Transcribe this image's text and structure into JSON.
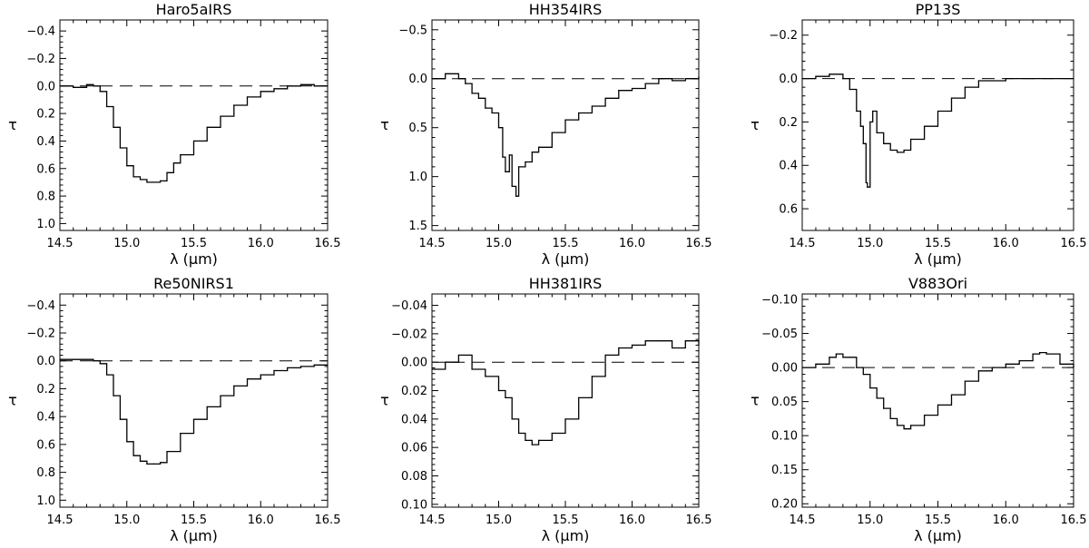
{
  "chart_data": [
    {
      "type": "line",
      "title": "Haro5aIRS",
      "xlabel": "λ (μm)",
      "ylabel": "τ",
      "xlim": [
        14.5,
        16.5
      ],
      "ylim": [
        1.05,
        -0.48
      ],
      "y_inverted": true,
      "xticks": [
        14.5,
        15.0,
        15.5,
        16.0,
        16.5
      ],
      "xtick_labels": [
        "14.5",
        "15.0",
        "15.5",
        "16.0",
        "16.5"
      ],
      "yticks": [
        -0.4,
        -0.2,
        0.0,
        0.2,
        0.4,
        0.6,
        0.8,
        1.0
      ],
      "ytick_labels": [
        "−0.4",
        "−0.2",
        "0.0",
        "0.2",
        "0.4",
        "0.6",
        "0.8",
        "1.0"
      ],
      "reference_line": 0.0,
      "grid": false,
      "x": [
        14.5,
        14.6,
        14.7,
        14.75,
        14.8,
        14.85,
        14.9,
        14.95,
        15.0,
        15.05,
        15.1,
        15.15,
        15.2,
        15.25,
        15.3,
        15.35,
        15.4,
        15.5,
        15.6,
        15.7,
        15.8,
        15.9,
        16.0,
        16.1,
        16.2,
        16.3,
        16.4,
        16.5
      ],
      "y": [
        0.0,
        0.01,
        -0.01,
        0.0,
        0.04,
        0.15,
        0.3,
        0.45,
        0.58,
        0.66,
        0.68,
        0.7,
        0.7,
        0.69,
        0.63,
        0.56,
        0.5,
        0.4,
        0.3,
        0.22,
        0.14,
        0.08,
        0.04,
        0.02,
        0.0,
        -0.01,
        0.0,
        0.0
      ]
    },
    {
      "type": "line",
      "title": "HH354IRS",
      "xlabel": "λ (μm)",
      "ylabel": "τ",
      "xlim": [
        14.5,
        16.5
      ],
      "ylim": [
        1.55,
        -0.6
      ],
      "y_inverted": true,
      "xticks": [
        14.5,
        15.0,
        15.5,
        16.0,
        16.5
      ],
      "xtick_labels": [
        "14.5",
        "15.0",
        "15.5",
        "16.0",
        "16.5"
      ],
      "yticks": [
        -0.5,
        0.0,
        0.5,
        1.0,
        1.5
      ],
      "ytick_labels": [
        "−0.5",
        "0.0",
        "0.5",
        "1.0",
        "1.5"
      ],
      "reference_line": 0.0,
      "grid": false,
      "x": [
        14.5,
        14.6,
        14.7,
        14.75,
        14.8,
        14.85,
        14.9,
        14.95,
        15.0,
        15.03,
        15.05,
        15.08,
        15.1,
        15.13,
        15.15,
        15.2,
        15.25,
        15.3,
        15.4,
        15.5,
        15.6,
        15.7,
        15.8,
        15.9,
        16.0,
        16.1,
        16.2,
        16.3,
        16.4,
        16.5
      ],
      "y": [
        0.0,
        -0.05,
        0.0,
        0.05,
        0.15,
        0.2,
        0.3,
        0.35,
        0.5,
        0.8,
        0.95,
        0.78,
        1.1,
        1.2,
        0.9,
        0.85,
        0.75,
        0.7,
        0.55,
        0.42,
        0.35,
        0.28,
        0.2,
        0.12,
        0.1,
        0.05,
        0.0,
        0.02,
        0.0,
        -0.02
      ]
    },
    {
      "type": "line",
      "title": "PP13S",
      "xlabel": "λ (μm)",
      "ylabel": "τ",
      "xlim": [
        14.5,
        16.5
      ],
      "ylim": [
        0.7,
        -0.27
      ],
      "y_inverted": true,
      "xticks": [
        14.5,
        15.0,
        15.5,
        16.0,
        16.5
      ],
      "xtick_labels": [
        "14.5",
        "15.0",
        "15.5",
        "16.0",
        "16.5"
      ],
      "yticks": [
        -0.2,
        0.0,
        0.2,
        0.4,
        0.6
      ],
      "ytick_labels": [
        "−0.2",
        "0.0",
        "0.2",
        "0.4",
        "0.6"
      ],
      "reference_line": 0.0,
      "grid": false,
      "x": [
        14.5,
        14.6,
        14.7,
        14.8,
        14.85,
        14.9,
        14.93,
        14.95,
        14.97,
        14.98,
        15.0,
        15.02,
        15.05,
        15.1,
        15.15,
        15.2,
        15.25,
        15.3,
        15.4,
        15.5,
        15.6,
        15.7,
        15.8,
        16.0,
        16.2,
        16.4,
        16.5
      ],
      "y": [
        0.0,
        -0.01,
        -0.02,
        0.0,
        0.05,
        0.15,
        0.22,
        0.3,
        0.48,
        0.5,
        0.2,
        0.15,
        0.25,
        0.3,
        0.33,
        0.34,
        0.33,
        0.28,
        0.22,
        0.15,
        0.09,
        0.04,
        0.01,
        0.0,
        0.0,
        0.0,
        0.0
      ]
    },
    {
      "type": "line",
      "title": "Re50NIRS1",
      "xlabel": "λ (μm)",
      "ylabel": "τ",
      "xlim": [
        14.5,
        16.5
      ],
      "ylim": [
        1.05,
        -0.48
      ],
      "y_inverted": true,
      "xticks": [
        14.5,
        15.0,
        15.5,
        16.0,
        16.5
      ],
      "xtick_labels": [
        "14.5",
        "15.0",
        "15.5",
        "16.0",
        "16.5"
      ],
      "yticks": [
        -0.4,
        -0.2,
        0.0,
        0.2,
        0.4,
        0.6,
        0.8,
        1.0
      ],
      "ytick_labels": [
        "−0.4",
        "−0.2",
        "0.0",
        "0.2",
        "0.4",
        "0.6",
        "0.8",
        "1.0"
      ],
      "reference_line": 0.0,
      "grid": false,
      "x": [
        14.5,
        14.6,
        14.7,
        14.75,
        14.8,
        14.85,
        14.9,
        14.95,
        15.0,
        15.05,
        15.1,
        15.15,
        15.2,
        15.25,
        15.3,
        15.4,
        15.5,
        15.6,
        15.7,
        15.8,
        15.9,
        16.0,
        16.1,
        16.2,
        16.3,
        16.4,
        16.5
      ],
      "y": [
        -0.01,
        -0.01,
        -0.01,
        0.0,
        0.02,
        0.1,
        0.25,
        0.42,
        0.58,
        0.68,
        0.72,
        0.74,
        0.74,
        0.73,
        0.65,
        0.52,
        0.42,
        0.33,
        0.25,
        0.18,
        0.13,
        0.1,
        0.07,
        0.05,
        0.04,
        0.03,
        0.03
      ]
    },
    {
      "type": "line",
      "title": "HH381IRS",
      "xlabel": "λ (μm)",
      "ylabel": "τ",
      "xlim": [
        14.5,
        16.5
      ],
      "ylim": [
        0.102,
        -0.048
      ],
      "y_inverted": true,
      "xticks": [
        14.5,
        15.0,
        15.5,
        16.0,
        16.5
      ],
      "xtick_labels": [
        "14.5",
        "15.0",
        "15.5",
        "16.0",
        "16.5"
      ],
      "yticks": [
        -0.04,
        -0.02,
        0.0,
        0.02,
        0.04,
        0.06,
        0.08,
        0.1
      ],
      "ytick_labels": [
        "−0.04",
        "−0.02",
        "0.00",
        "0.02",
        "0.04",
        "0.06",
        "0.08",
        "0.10"
      ],
      "reference_line": 0.0,
      "grid": false,
      "x": [
        14.5,
        14.6,
        14.7,
        14.8,
        14.9,
        15.0,
        15.05,
        15.1,
        15.15,
        15.2,
        15.25,
        15.3,
        15.4,
        15.5,
        15.6,
        15.7,
        15.8,
        15.9,
        16.0,
        16.1,
        16.2,
        16.3,
        16.4,
        16.5
      ],
      "y": [
        0.005,
        0.0,
        -0.005,
        0.005,
        0.01,
        0.02,
        0.025,
        0.04,
        0.05,
        0.055,
        0.058,
        0.055,
        0.05,
        0.04,
        0.025,
        0.01,
        -0.005,
        -0.01,
        -0.012,
        -0.015,
        -0.015,
        -0.01,
        -0.015,
        -0.012
      ]
    },
    {
      "type": "line",
      "title": "V883Ori",
      "xlabel": "λ (μm)",
      "ylabel": "τ",
      "xlim": [
        14.5,
        16.5
      ],
      "ylim": [
        0.205,
        -0.108
      ],
      "y_inverted": true,
      "xticks": [
        14.5,
        15.0,
        15.5,
        16.0,
        16.5
      ],
      "xtick_labels": [
        "14.5",
        "15.0",
        "15.5",
        "16.0",
        "16.5"
      ],
      "yticks": [
        -0.1,
        -0.05,
        0.0,
        0.05,
        0.1,
        0.15,
        0.2
      ],
      "ytick_labels": [
        "−0.10",
        "−0.05",
        "0.00",
        "0.05",
        "0.10",
        "0.15",
        "0.20"
      ],
      "reference_line": 0.0,
      "grid": false,
      "x": [
        14.5,
        14.6,
        14.7,
        14.75,
        14.8,
        14.9,
        14.95,
        15.0,
        15.05,
        15.1,
        15.15,
        15.2,
        15.25,
        15.3,
        15.4,
        15.5,
        15.6,
        15.7,
        15.8,
        15.9,
        16.0,
        16.1,
        16.2,
        16.25,
        16.3,
        16.4,
        16.5
      ],
      "y": [
        0.0,
        -0.005,
        -0.015,
        -0.02,
        -0.015,
        0.0,
        0.01,
        0.03,
        0.045,
        0.06,
        0.075,
        0.085,
        0.09,
        0.085,
        0.07,
        0.055,
        0.04,
        0.02,
        0.005,
        0.0,
        -0.005,
        -0.01,
        -0.02,
        -0.022,
        -0.02,
        -0.005,
        0.0
      ]
    }
  ]
}
